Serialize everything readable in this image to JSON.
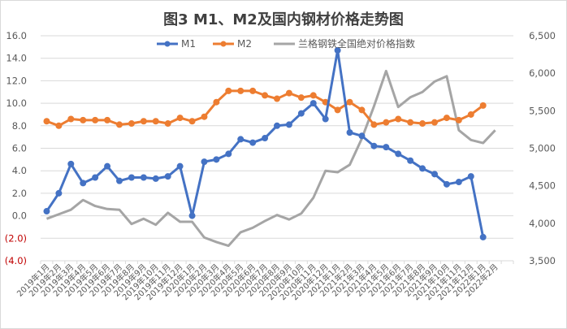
{
  "chart_data": {
    "type": "line",
    "title": "图3 M1、M2及国内钢材价格走势图",
    "xlabel": "",
    "ylabel_left": "",
    "ylabel_right": "",
    "ylim_left": [
      -4.0,
      16.0
    ],
    "ylim_right": [
      3500,
      6500
    ],
    "yticks_left": [
      "16.0",
      "14.0",
      "12.0",
      "10.0",
      "8.0",
      "6.0",
      "4.0",
      "2.0",
      "0.0",
      "(2.0)",
      "(4.0)"
    ],
    "yticks_right": [
      "6,500",
      "6,000",
      "5,500",
      "5,000",
      "4,500",
      "4,000",
      "3,500"
    ],
    "grid": true,
    "legend_position": "top",
    "categories": [
      "2019年1月",
      "2019年2月",
      "2019年3月",
      "2019年4月",
      "2019年5月",
      "2019年6月",
      "2019年7月",
      "2019年8月",
      "2019年9月",
      "2019年10月",
      "2019年11月",
      "2019年12月",
      "2020年1月",
      "2020年2月",
      "2020年3月",
      "2020年4月",
      "2020年5月",
      "2020年6月",
      "2020年7月",
      "2020年8月",
      "2020年9月",
      "2020年10月",
      "2020年11月",
      "2020年12月",
      "2021年1月",
      "2021年2月",
      "2021年3月",
      "2021年4月",
      "2021年5月",
      "2021年6月",
      "2021年7月",
      "2021年8月",
      "2021年9月",
      "2021年10月",
      "2021年11月",
      "2021年12月",
      "2022年1月",
      "2022年2月"
    ],
    "series": [
      {
        "name": "M1",
        "axis": "left",
        "color": "#4472c4",
        "marker": true,
        "values": [
          0.4,
          2.0,
          4.6,
          2.9,
          3.4,
          4.4,
          3.1,
          3.4,
          3.4,
          3.3,
          3.5,
          4.4,
          0.0,
          4.8,
          5.0,
          5.5,
          6.8,
          6.5,
          6.9,
          8.0,
          8.1,
          9.1,
          10.0,
          8.6,
          14.7,
          7.4,
          7.1,
          6.2,
          6.1,
          5.5,
          4.9,
          4.2,
          3.7,
          2.8,
          3.0,
          3.5,
          -1.9
        ]
      },
      {
        "name": "M2",
        "axis": "left",
        "color": "#ed7d31",
        "marker": true,
        "values": [
          8.4,
          8.0,
          8.6,
          8.5,
          8.5,
          8.5,
          8.1,
          8.2,
          8.4,
          8.4,
          8.2,
          8.7,
          8.4,
          8.8,
          10.1,
          11.1,
          11.1,
          11.1,
          10.7,
          10.4,
          10.9,
          10.5,
          10.7,
          10.1,
          9.4,
          10.1,
          9.4,
          8.1,
          8.3,
          8.6,
          8.3,
          8.2,
          8.3,
          8.7,
          8.5,
          9.0,
          9.8
        ]
      },
      {
        "name": "兰格钢铁全国绝对价格指数",
        "axis": "right",
        "color": "#a5a5a5",
        "marker": false,
        "values": [
          4060,
          4120,
          4180,
          4310,
          4230,
          4190,
          4180,
          3990,
          4060,
          3980,
          4140,
          4020,
          4020,
          3810,
          3750,
          3700,
          3880,
          3940,
          4030,
          4110,
          4050,
          4130,
          4340,
          4700,
          4680,
          4780,
          5130,
          5560,
          6030,
          5550,
          5680,
          5750,
          5890,
          5960,
          5240,
          5110,
          5070,
          5240
        ]
      }
    ]
  },
  "legend": {
    "items": [
      {
        "label": "M1",
        "color": "#4472c4"
      },
      {
        "label": "M2",
        "color": "#ed7d31"
      },
      {
        "label": "兰格钢铁全国绝对价格指数",
        "color": "#a5a5a5"
      }
    ]
  }
}
